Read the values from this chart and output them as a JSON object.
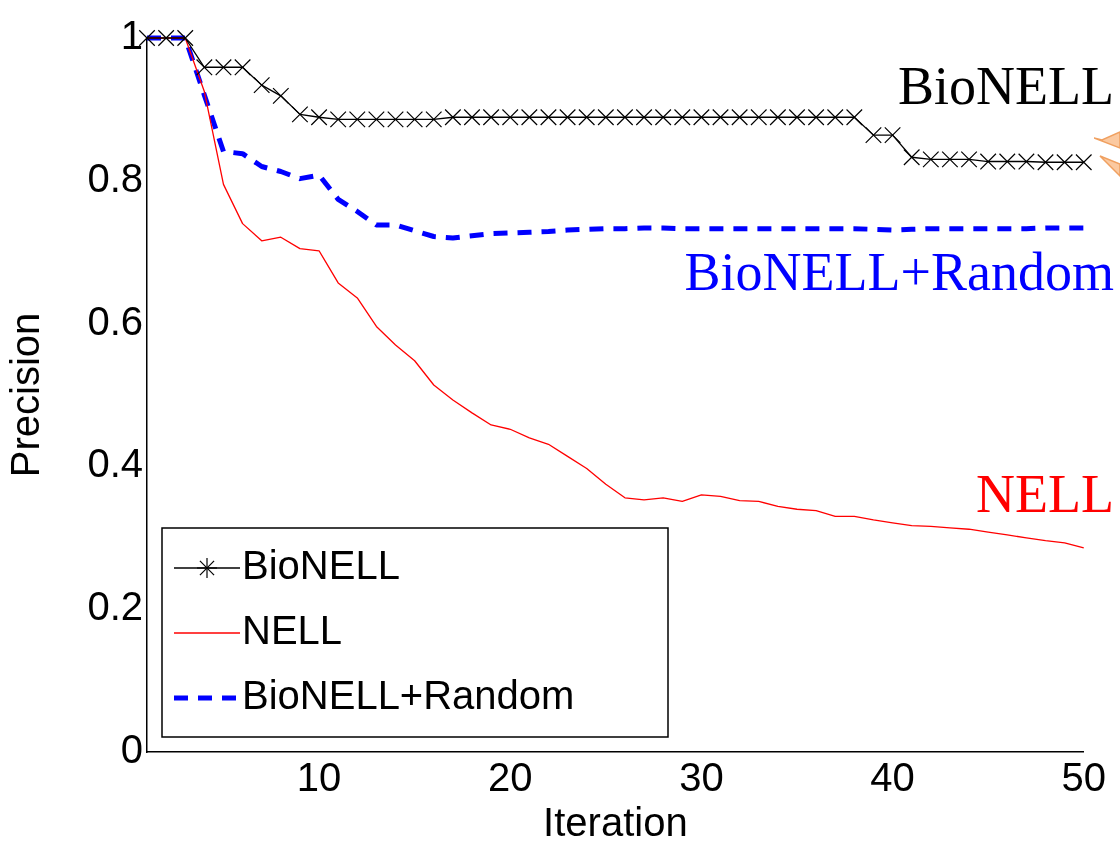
{
  "chart_data": {
    "type": "line",
    "xlabel": "Iteration",
    "ylabel": "Precision",
    "x": [
      1,
      2,
      3,
      4,
      5,
      6,
      7,
      8,
      9,
      10,
      11,
      12,
      13,
      14,
      15,
      16,
      17,
      18,
      19,
      20,
      21,
      22,
      23,
      24,
      25,
      26,
      27,
      28,
      29,
      30,
      31,
      32,
      33,
      34,
      35,
      36,
      37,
      38,
      39,
      40,
      41,
      42,
      43,
      44,
      45,
      46,
      47,
      48,
      49,
      50
    ],
    "xlim": [
      1,
      50
    ],
    "xticks": [
      10,
      20,
      30,
      40,
      50
    ],
    "ylim": [
      0,
      1
    ],
    "yticks": [
      0,
      0.2,
      0.4,
      0.6,
      0.8,
      1
    ],
    "legend": "bottom left",
    "series": [
      {
        "name": "BioNELL",
        "color": "#000000",
        "marker": "cross",
        "line_style": "solid",
        "values": [
          1,
          1,
          1,
          0.959,
          0.959,
          0.959,
          0.934,
          0.919,
          0.893,
          0.889,
          0.886,
          0.886,
          0.886,
          0.886,
          0.886,
          0.886,
          0.889,
          0.889,
          0.889,
          0.889,
          0.889,
          0.889,
          0.889,
          0.889,
          0.889,
          0.889,
          0.889,
          0.889,
          0.889,
          0.889,
          0.889,
          0.889,
          0.889,
          0.889,
          0.889,
          0.889,
          0.889,
          0.889,
          0.864,
          0.864,
          0.833,
          0.83,
          0.83,
          0.83,
          0.827,
          0.827,
          0.827,
          0.826,
          0.826,
          0.826
        ]
      },
      {
        "name": "NELL",
        "color": "#ff0000",
        "marker": "none",
        "line_style": "solid",
        "values": [
          1,
          1,
          1,
          0.925,
          0.795,
          0.74,
          0.716,
          0.721,
          0.705,
          0.702,
          0.657,
          0.636,
          0.596,
          0.57,
          0.548,
          0.514,
          0.493,
          0.475,
          0.458,
          0.452,
          0.44,
          0.431,
          0.414,
          0.397,
          0.375,
          0.356,
          0.353,
          0.356,
          0.351,
          0.36,
          0.358,
          0.352,
          0.351,
          0.344,
          0.34,
          0.338,
          0.33,
          0.33,
          0.325,
          0.321,
          0.317,
          0.316,
          0.314,
          0.312,
          0.308,
          0.304,
          0.3,
          0.296,
          0.293,
          0.286
        ]
      },
      {
        "name": "BioNELL+Random",
        "color": "#0000ff",
        "marker": "none",
        "line_style": "dashed",
        "values": [
          1,
          1,
          1,
          0.92,
          0.841,
          0.838,
          0.82,
          0.813,
          0.803,
          0.808,
          0.774,
          0.757,
          0.738,
          0.738,
          0.73,
          0.722,
          0.72,
          0.723,
          0.726,
          0.727,
          0.728,
          0.729,
          0.731,
          0.732,
          0.733,
          0.733,
          0.734,
          0.734,
          0.733,
          0.733,
          0.733,
          0.733,
          0.733,
          0.733,
          0.733,
          0.733,
          0.733,
          0.733,
          0.732,
          0.731,
          0.732,
          0.733,
          0.733,
          0.733,
          0.733,
          0.733,
          0.733,
          0.734,
          0.734,
          0.734
        ]
      }
    ],
    "annotations": [
      "BioNELL",
      "NELL",
      "BioNELL+Random"
    ]
  }
}
